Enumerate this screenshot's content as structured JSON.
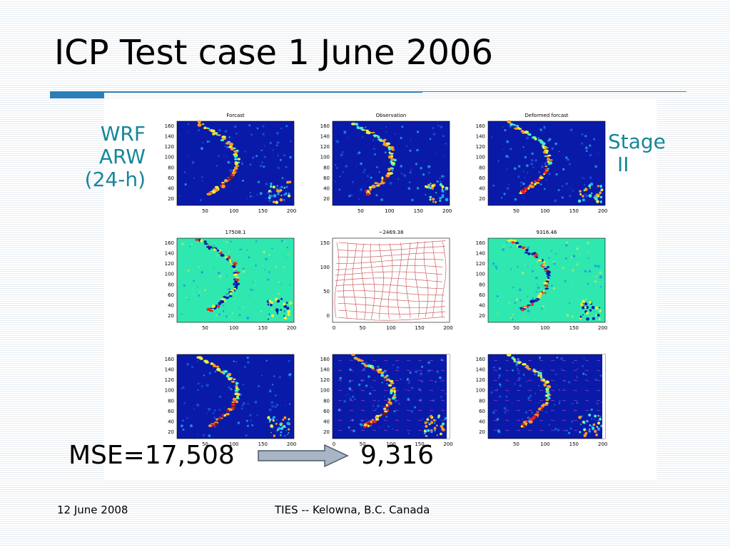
{
  "slide": {
    "title": "ICP Test case 1 June 2006",
    "left_label": [
      "WRF",
      "ARW",
      "(24-h)"
    ],
    "right_label": [
      "Stage",
      "II"
    ],
    "mse_label": "MSE=17,508",
    "mse_result": "9,316",
    "footer_date": "12 June 2008",
    "footer_center": "TIES -- Kelowna, B.C. Canada"
  },
  "panels": [
    {
      "title": "Forcast",
      "type": "field",
      "background": "#0a1aa8",
      "yticks": [
        "160",
        "140",
        "120",
        "100",
        "80",
        "60",
        "40",
        "20"
      ],
      "xticks": [
        "50",
        "100",
        "150",
        "200"
      ]
    },
    {
      "title": "Observation",
      "type": "field",
      "background": "#0a1aa8",
      "yticks": [
        "160",
        "140",
        "120",
        "100",
        "80",
        "60",
        "40",
        "20"
      ],
      "xticks": [
        "50",
        "100",
        "150",
        "200"
      ]
    },
    {
      "title": "Deformed forcast",
      "type": "field",
      "background": "#0a1aa8",
      "yticks": [
        "160",
        "140",
        "120",
        "100",
        "80",
        "60",
        "40",
        "20"
      ],
      "xticks": [
        "50",
        "100",
        "150",
        "200"
      ]
    },
    {
      "title": "17508.1",
      "type": "diff",
      "background": "#2ee8b0",
      "yticks": [
        "160",
        "140",
        "120",
        "100",
        "80",
        "60",
        "40",
        "20"
      ],
      "xticks": [
        "50",
        "100",
        "150",
        "200"
      ]
    },
    {
      "title": "−2469.38",
      "type": "grid",
      "background": "#ffffff",
      "yticks": [
        "150",
        "100",
        "50",
        "0"
      ],
      "xticks": [
        "0",
        "50",
        "100",
        "150",
        "200"
      ]
    },
    {
      "title": "9316.46",
      "type": "diff",
      "background": "#2ee8b0",
      "yticks": [
        "160",
        "140",
        "120",
        "100",
        "80",
        "60",
        "40",
        "20"
      ],
      "xticks": [
        "50",
        "100",
        "150",
        "200"
      ]
    },
    {
      "title": "",
      "type": "field",
      "background": "#0a1aa8",
      "yticks": [
        "160",
        "140",
        "120",
        "100",
        "80",
        "60",
        "40",
        "20"
      ],
      "xticks": [
        "50",
        "100",
        "150",
        "200"
      ]
    },
    {
      "title": "",
      "type": "field",
      "background": "#0a1aa8",
      "yticks": [
        "160",
        "140",
        "120",
        "100",
        "80",
        "60",
        "40",
        "20"
      ],
      "xticks": [
        "0",
        "50",
        "100",
        "150",
        "200"
      ]
    },
    {
      "title": "",
      "type": "field",
      "background": "#0a1aa8",
      "yticks": [
        "160",
        "140",
        "120",
        "100",
        "80",
        "60",
        "40",
        "20"
      ],
      "xticks": [
        "50",
        "100",
        "150",
        "200"
      ]
    }
  ],
  "colors": {
    "accent": "#2b7fb8",
    "label_teal": "#17869a",
    "arrow_fill": "#a7b5c4",
    "arrow_stroke": "#4a5a6a"
  }
}
